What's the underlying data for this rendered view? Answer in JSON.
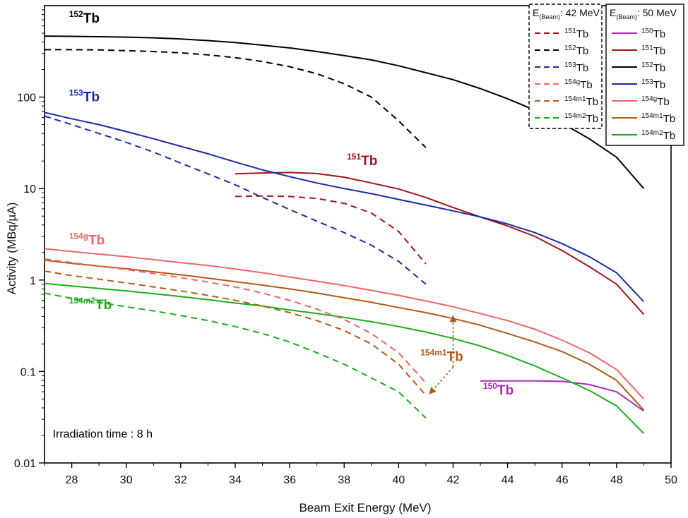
{
  "chart_data": {
    "type": "line",
    "xlabel": "Beam Exit Energy (MeV)",
    "ylabel": "Activity (MBq/µA)",
    "xlim": [
      27,
      50
    ],
    "ylim": [
      0.01,
      1000
    ],
    "yscale": "log",
    "grid": false,
    "xticks": [
      28,
      30,
      32,
      34,
      36,
      38,
      40,
      42,
      44,
      46,
      48,
      50
    ],
    "yticks": [
      {
        "value": 0.01,
        "label": "0.01"
      },
      {
        "value": 0.1,
        "label": "0.1"
      },
      {
        "value": 1,
        "label": "1"
      },
      {
        "value": 10,
        "label": "10"
      },
      {
        "value": 100,
        "label": "100"
      }
    ],
    "series": [
      {
        "group": "50",
        "name": "150",
        "isotope": "150",
        "color": "#b02ab8",
        "dashed": false,
        "x": [
          43,
          44,
          45,
          46,
          47,
          48,
          49
        ],
        "y": [
          0.079,
          0.079,
          0.079,
          0.078,
          0.072,
          0.06,
          0.037
        ]
      },
      {
        "group": "50",
        "name": "151",
        "isotope": "151",
        "color": "#a3141c",
        "dashed": false,
        "x": [
          34,
          35,
          36,
          37,
          38,
          39,
          40,
          41,
          42,
          43,
          44,
          45,
          46,
          47,
          48,
          49
        ],
        "y": [
          14.5,
          14.8,
          15,
          14.6,
          13.3,
          11.5,
          9.9,
          8,
          6.2,
          4.9,
          3.9,
          3,
          2.1,
          1.4,
          0.9,
          0.42
        ]
      },
      {
        "group": "50",
        "name": "152",
        "isotope": "152",
        "color": "#000000",
        "dashed": false,
        "x": [
          27,
          28,
          29,
          30,
          31,
          32,
          33,
          34,
          35,
          36,
          37,
          38,
          39,
          40,
          41,
          42,
          43,
          44,
          45,
          46,
          47,
          48,
          49
        ],
        "y": [
          465,
          462,
          458,
          453,
          445,
          432,
          415,
          395,
          370,
          345,
          315,
          285,
          255,
          220,
          185,
          155,
          124,
          96,
          72,
          52,
          35,
          22,
          10
        ]
      },
      {
        "group": "50",
        "name": "153",
        "isotope": "153",
        "color": "#1a2aa8",
        "dashed": false,
        "x": [
          27,
          28,
          29,
          30,
          31,
          32,
          33,
          34,
          35,
          36,
          37,
          38,
          39,
          40,
          41,
          42,
          43,
          44,
          45,
          46,
          47,
          48,
          49
        ],
        "y": [
          68,
          58,
          50,
          42,
          35,
          29,
          24,
          19.5,
          16,
          13.5,
          11.5,
          10,
          8.8,
          7.6,
          6.6,
          5.7,
          4.9,
          4.1,
          3.3,
          2.5,
          1.8,
          1.2,
          0.58
        ]
      },
      {
        "group": "50",
        "name": "154g",
        "isotope": "154g",
        "color": "#f06468",
        "dashed": false,
        "x": [
          27,
          28,
          29,
          30,
          31,
          32,
          33,
          34,
          35,
          36,
          37,
          38,
          39,
          40,
          41,
          42,
          43,
          44,
          45,
          46,
          47,
          48,
          49
        ],
        "y": [
          2.2,
          2.05,
          1.92,
          1.8,
          1.67,
          1.55,
          1.44,
          1.32,
          1.2,
          1.08,
          0.97,
          0.87,
          0.77,
          0.68,
          0.59,
          0.51,
          0.43,
          0.36,
          0.29,
          0.22,
          0.16,
          0.105,
          0.05
        ]
      },
      {
        "group": "50",
        "name": "154m1",
        "isotope": "154m1",
        "color": "#b35a17",
        "dashed": false,
        "x": [
          27,
          28,
          29,
          30,
          31,
          32,
          33,
          34,
          35,
          36,
          37,
          38,
          39,
          40,
          41,
          42,
          43,
          44,
          45,
          46,
          47,
          48,
          49
        ],
        "y": [
          1.65,
          1.52,
          1.42,
          1.33,
          1.23,
          1.14,
          1.05,
          0.96,
          0.88,
          0.8,
          0.72,
          0.64,
          0.57,
          0.5,
          0.44,
          0.38,
          0.32,
          0.26,
          0.21,
          0.165,
          0.12,
          0.08,
          0.038
        ]
      },
      {
        "group": "50",
        "name": "154m2",
        "isotope": "154m2",
        "color": "#1aae1a",
        "dashed": false,
        "x": [
          27,
          28,
          29,
          30,
          31,
          32,
          33,
          34,
          35,
          36,
          37,
          38,
          39,
          40,
          41,
          42,
          43,
          44,
          45,
          46,
          47,
          48,
          49
        ],
        "y": [
          0.92,
          0.86,
          0.81,
          0.76,
          0.71,
          0.66,
          0.61,
          0.56,
          0.52,
          0.47,
          0.43,
          0.39,
          0.35,
          0.31,
          0.27,
          0.23,
          0.19,
          0.15,
          0.115,
          0.085,
          0.062,
          0.042,
          0.021
        ]
      },
      {
        "group": "42",
        "name": "151",
        "isotope": "151",
        "color": "#a3141c",
        "dashed": true,
        "x": [
          34,
          35,
          36,
          37,
          38,
          39,
          40,
          41
        ],
        "y": [
          8.2,
          8.3,
          8.2,
          7.8,
          6.9,
          5.4,
          3.4,
          1.5
        ]
      },
      {
        "group": "42",
        "name": "152",
        "isotope": "152",
        "color": "#000000",
        "dashed": true,
        "x": [
          27,
          28,
          29,
          30,
          31,
          32,
          33,
          34,
          35,
          36,
          37,
          38,
          39,
          40,
          41
        ],
        "y": [
          330,
          330,
          328,
          322,
          315,
          305,
          290,
          270,
          245,
          215,
          180,
          140,
          100,
          55,
          28
        ]
      },
      {
        "group": "42",
        "name": "153",
        "isotope": "153",
        "color": "#1a2aa8",
        "dashed": true,
        "x": [
          27,
          28,
          29,
          30,
          31,
          32,
          33,
          34,
          35,
          36,
          37,
          38,
          39,
          40,
          41
        ],
        "y": [
          62,
          50,
          40,
          32,
          25,
          19,
          14.5,
          11,
          8,
          5.9,
          4.4,
          3.3,
          2.4,
          1.6,
          0.9
        ]
      },
      {
        "group": "42",
        "name": "154g",
        "isotope": "154g",
        "color": "#f06468",
        "dashed": true,
        "x": [
          27,
          28,
          29,
          30,
          31,
          32,
          33,
          34,
          35,
          36,
          37,
          38,
          39,
          40,
          41
        ],
        "y": [
          1.7,
          1.55,
          1.42,
          1.3,
          1.18,
          1.06,
          0.95,
          0.84,
          0.72,
          0.6,
          0.48,
          0.37,
          0.26,
          0.16,
          0.075
        ]
      },
      {
        "group": "42",
        "name": "154m1",
        "isotope": "154m1",
        "color": "#b35a17",
        "dashed": true,
        "x": [
          27,
          28,
          29,
          30,
          31,
          32,
          33,
          34,
          35,
          36,
          37,
          38,
          39,
          40,
          41
        ],
        "y": [
          1.25,
          1.12,
          1.02,
          0.93,
          0.84,
          0.76,
          0.68,
          0.6,
          0.52,
          0.44,
          0.36,
          0.28,
          0.2,
          0.12,
          0.055
        ]
      },
      {
        "group": "42",
        "name": "154m2",
        "isotope": "154m2",
        "color": "#1aae1a",
        "dashed": true,
        "x": [
          27,
          28,
          29,
          30,
          31,
          32,
          33,
          34,
          35,
          36,
          37,
          38,
          39,
          40,
          41
        ],
        "y": [
          0.72,
          0.63,
          0.57,
          0.51,
          0.46,
          0.41,
          0.36,
          0.31,
          0.26,
          0.21,
          0.16,
          0.12,
          0.085,
          0.06,
          0.031
        ]
      }
    ],
    "legends": [
      {
        "group": "42",
        "title_prefix": "E",
        "title_sub": "(Beam)",
        "title_value": ": 42 MeV",
        "dashed": true,
        "border": "dashed",
        "entries": [
          {
            "isotope": "151",
            "label": "Tb",
            "color": "#a3141c"
          },
          {
            "isotope": "152",
            "label": "Tb",
            "color": "#000000"
          },
          {
            "isotope": "153",
            "label": "Tb",
            "color": "#1a2aa8"
          },
          {
            "isotope": "154g",
            "label": "Tb",
            "color": "#f06468"
          },
          {
            "isotope": "154m1",
            "label": "Tb",
            "color": "#b35a17"
          },
          {
            "isotope": "154m2",
            "label": "Tb",
            "color": "#1aae1a"
          }
        ]
      },
      {
        "group": "50",
        "title_prefix": "E",
        "title_sub": "(Beam)",
        "title_value": ": 50 MeV",
        "dashed": false,
        "border": "solid",
        "entries": [
          {
            "isotope": "150",
            "label": "Tb",
            "color": "#b02ab8"
          },
          {
            "isotope": "151",
            "label": "Tb",
            "color": "#a3141c"
          },
          {
            "isotope": "152",
            "label": "Tb",
            "color": "#000000"
          },
          {
            "isotope": "153",
            "label": "Tb",
            "color": "#1a2aa8"
          },
          {
            "isotope": "154g",
            "label": "Tb",
            "color": "#f06468"
          },
          {
            "isotope": "154m1",
            "label": "Tb",
            "color": "#b35a17"
          },
          {
            "isotope": "154m2",
            "label": "Tb",
            "color": "#1aae1a"
          }
        ]
      }
    ],
    "annotations": [
      {
        "isotope": "152",
        "text": "Tb",
        "color": "#000000",
        "x": 27.9,
        "y": 650
      },
      {
        "isotope": "153",
        "text": "Tb",
        "color": "#1a2aa8",
        "x": 27.9,
        "y": 90
      },
      {
        "isotope": "151",
        "text": "Tb",
        "color": "#a3141c",
        "x": 38.1,
        "y": 18
      },
      {
        "isotope": "154g",
        "text": "Tb",
        "color": "#f06468",
        "x": 27.9,
        "y": 2.45
      },
      {
        "isotope": "154m2",
        "text": "Tb",
        "color": "#1aae1a",
        "x": 27.9,
        "y": 0.48
      },
      {
        "isotope": "154m1",
        "text": "Tb",
        "color": "#b35a17",
        "x": 40.8,
        "y": 0.13
      },
      {
        "isotope": "150",
        "text": "Tb",
        "color": "#b02ab8",
        "x": 43.1,
        "y": 0.056
      },
      {
        "text": "Irradiation time : 8 h",
        "color": "#000000",
        "x": 27.3,
        "y": 0.019
      }
    ],
    "arrow": {
      "color": "#b35a17",
      "from": [
        42,
        0.112
      ],
      "to_up": [
        42,
        0.38
      ],
      "to_down": [
        41.2,
        0.06
      ]
    }
  }
}
